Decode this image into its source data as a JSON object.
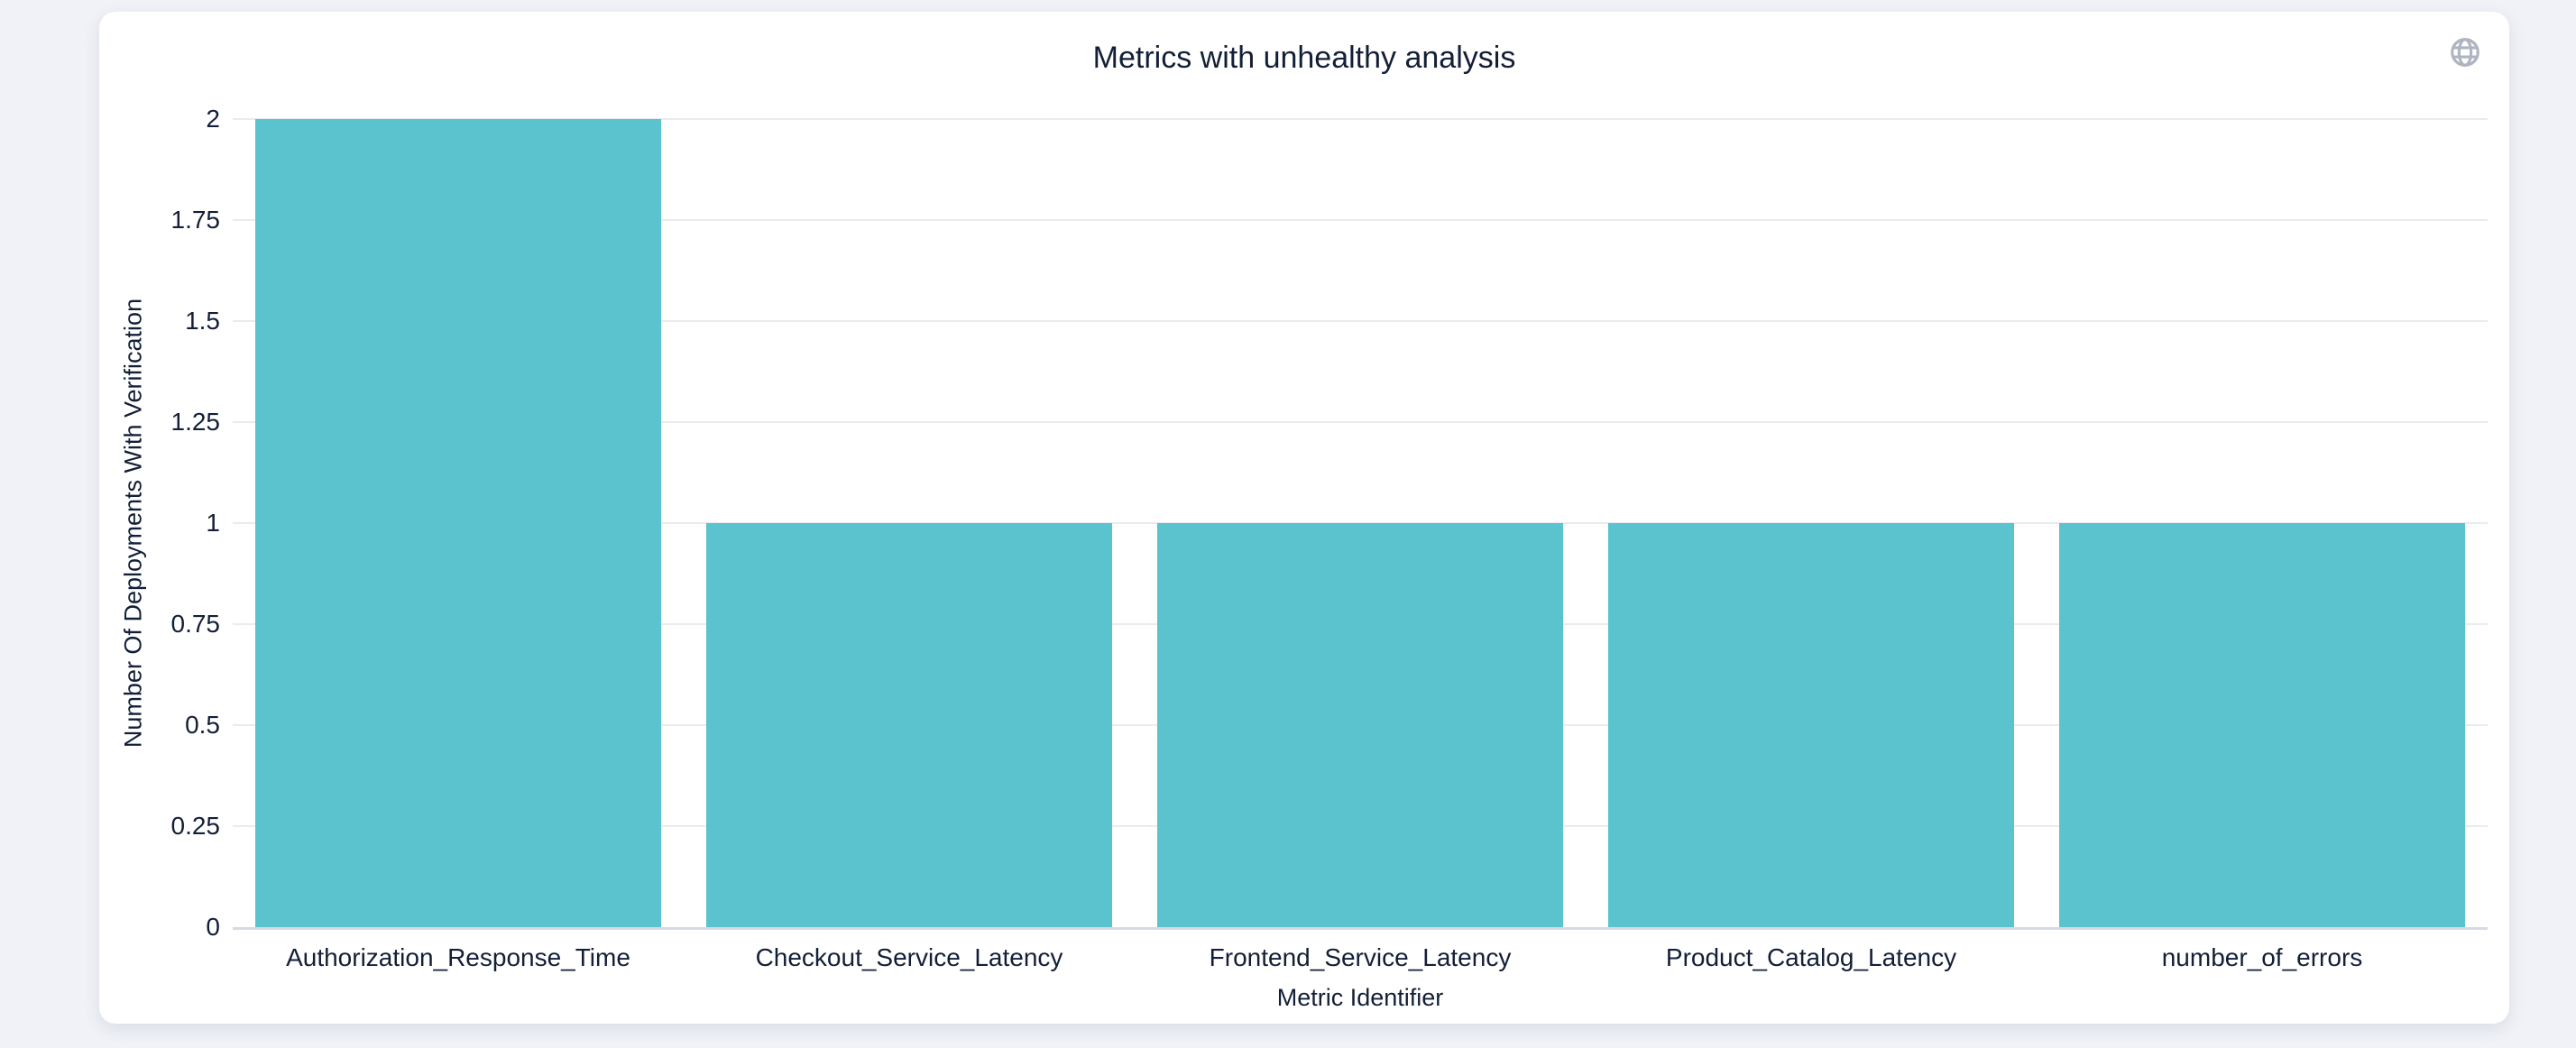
{
  "card": {
    "title": "Metrics with unhealthy analysis"
  },
  "toolbar": {
    "globe_icon": "globe-icon"
  },
  "colors": {
    "bar": "#5ac3ce",
    "gridline": "#eaebee",
    "axis_baseline": "#d5dae6",
    "text": "#131f37",
    "icon": "#afb5c0",
    "card_background": "#ffffff",
    "page_background": "#f0f2f7"
  },
  "chart_data": {
    "type": "bar",
    "title": "Metrics with unhealthy analysis",
    "xlabel": "Metric Identifier",
    "ylabel": "Number Of Deployments With Verification",
    "categories": [
      "Authorization_Response_Time",
      "Checkout_Service_Latency",
      "Frontend_Service_Latency",
      "Product_Catalog_Latency",
      "number_of_errors"
    ],
    "values": [
      2,
      1,
      1,
      1,
      1
    ],
    "ylim": [
      0,
      2
    ],
    "y_tick_labels": [
      "0",
      "0.25",
      "0.5",
      "0.75",
      "1",
      "1.25",
      "1.5",
      "1.75",
      "2"
    ],
    "grid": "horizontal",
    "legend_position": "none",
    "bar_color": "#5ac3ce",
    "bar_band_fraction": 0.9
  }
}
